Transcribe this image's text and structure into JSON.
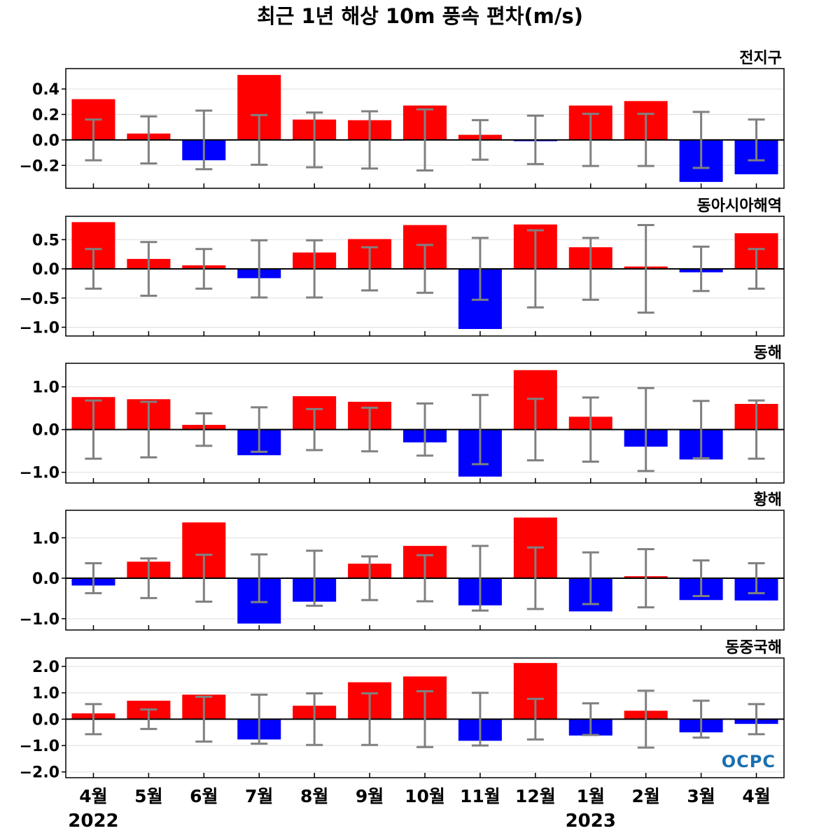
{
  "figure": {
    "title": "최근 1년 해상 10m 풍속 편차(m/s)",
    "x_tick_labels": [
      "4월",
      "5월",
      "6월",
      "7월",
      "8월",
      "9월",
      "10월",
      "11월",
      "12월",
      "1월",
      "2월",
      "3월",
      "4월"
    ],
    "year_labels": [
      {
        "text": "2022",
        "index": 0
      },
      {
        "text": "2023",
        "index": 9
      }
    ],
    "logo_text": "OCPC",
    "colors": {
      "positive": "#ff0000",
      "negative": "#0000ff",
      "errorbar": "#808080",
      "zero_line": "#000000",
      "grid": "#dddddd"
    }
  },
  "chart_data": [
    {
      "type": "bar",
      "region": "전지구",
      "categories": [
        "4월",
        "5월",
        "6월",
        "7월",
        "8월",
        "9월",
        "10월",
        "11월",
        "12월",
        "1월",
        "2월",
        "3월",
        "4월"
      ],
      "values": [
        0.32,
        0.05,
        -0.16,
        0.51,
        0.16,
        0.155,
        0.27,
        0.04,
        -0.01,
        0.27,
        0.305,
        -0.33,
        -0.27
      ],
      "error": [
        0.16,
        0.185,
        0.23,
        0.195,
        0.215,
        0.225,
        0.24,
        0.155,
        0.19,
        0.205,
        0.205,
        0.22,
        0.16
      ],
      "ylim": [
        -0.38,
        0.56
      ],
      "yticks": [
        -0.2,
        0.0,
        0.2,
        0.4
      ],
      "ytick_labels": [
        "−0.2",
        "0.0",
        "0.2",
        "0.4"
      ]
    },
    {
      "type": "bar",
      "region": "동아시아해역",
      "categories": [
        "4월",
        "5월",
        "6월",
        "7월",
        "8월",
        "9월",
        "10월",
        "11월",
        "12월",
        "1월",
        "2월",
        "3월",
        "4월"
      ],
      "values": [
        0.8,
        0.17,
        0.06,
        -0.16,
        0.28,
        0.51,
        0.75,
        -1.03,
        0.76,
        0.37,
        0.04,
        -0.06,
        0.61
      ],
      "error": [
        0.34,
        0.46,
        0.34,
        0.49,
        0.49,
        0.37,
        0.41,
        0.53,
        0.66,
        0.53,
        0.75,
        0.38,
        0.34
      ],
      "ylim": [
        -1.15,
        0.9
      ],
      "yticks": [
        -1.0,
        -0.5,
        0.0,
        0.5
      ],
      "ytick_labels": [
        "−1.0",
        "−0.5",
        "0.0",
        "0.5"
      ]
    },
    {
      "type": "bar",
      "region": "동해",
      "categories": [
        "4월",
        "5월",
        "6월",
        "7월",
        "8월",
        "9월",
        "10월",
        "11월",
        "12월",
        "1월",
        "2월",
        "3월",
        "4월"
      ],
      "values": [
        0.76,
        0.71,
        0.11,
        -0.6,
        0.78,
        0.65,
        -0.3,
        -1.1,
        1.39,
        0.3,
        -0.4,
        -0.7,
        0.6
      ],
      "error": [
        0.68,
        0.65,
        0.38,
        0.52,
        0.48,
        0.51,
        0.61,
        0.81,
        0.72,
        0.75,
        0.97,
        0.67,
        0.68
      ],
      "ylim": [
        -1.25,
        1.55
      ],
      "yticks": [
        -1.0,
        0.0,
        1.0
      ],
      "ytick_labels": [
        "−1.0",
        "0.0",
        "1.0"
      ]
    },
    {
      "type": "bar",
      "region": "황해",
      "categories": [
        "4월",
        "5월",
        "6월",
        "7월",
        "8월",
        "9월",
        "10월",
        "11월",
        "12월",
        "1월",
        "2월",
        "3월",
        "4월"
      ],
      "values": [
        -0.18,
        0.41,
        1.38,
        -1.12,
        -0.58,
        0.36,
        0.8,
        -0.67,
        1.5,
        -0.82,
        0.05,
        -0.54,
        -0.55
      ],
      "error": [
        0.37,
        0.49,
        0.58,
        0.59,
        0.68,
        0.54,
        0.57,
        0.8,
        0.76,
        0.64,
        0.72,
        0.44,
        0.37
      ],
      "ylim": [
        -1.28,
        1.68
      ],
      "yticks": [
        -1.0,
        0.0,
        1.0
      ],
      "ytick_labels": [
        "−1.0",
        "0.0",
        "1.0"
      ]
    },
    {
      "type": "bar",
      "region": "동중국해",
      "categories": [
        "4월",
        "5월",
        "6월",
        "7월",
        "8월",
        "9월",
        "10월",
        "11월",
        "12월",
        "1월",
        "2월",
        "3월",
        "4월"
      ],
      "values": [
        0.22,
        0.7,
        0.93,
        -0.77,
        0.51,
        1.4,
        1.62,
        -0.82,
        2.13,
        -0.62,
        0.32,
        -0.5,
        -0.18
      ],
      "error": [
        0.57,
        0.37,
        0.85,
        0.93,
        0.98,
        0.98,
        1.06,
        1.0,
        0.77,
        0.6,
        1.08,
        0.7,
        0.57
      ],
      "ylim": [
        -2.22,
        2.32
      ],
      "yticks": [
        -2.0,
        -1.0,
        0.0,
        1.0,
        2.0
      ],
      "ytick_labels": [
        "−2.0",
        "−1.0",
        "0.0",
        "1.0",
        "2.0"
      ]
    }
  ]
}
